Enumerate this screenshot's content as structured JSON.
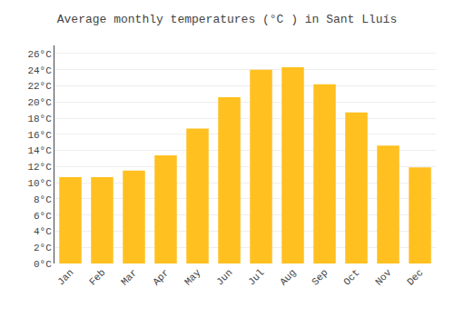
{
  "chart_data": {
    "type": "bar",
    "title": "Average monthly temperatures (°C ) in Sant Lluís",
    "categories": [
      "Jan",
      "Feb",
      "Mar",
      "Apr",
      "May",
      "Jun",
      "Jul",
      "Aug",
      "Sep",
      "Oct",
      "Nov",
      "Dec"
    ],
    "values": [
      10.7,
      10.7,
      11.5,
      13.4,
      16.7,
      20.6,
      24.0,
      24.3,
      22.2,
      18.7,
      14.6,
      11.9
    ],
    "color": "#FFC020",
    "ylim": [
      0,
      27
    ],
    "yticks": [
      {
        "value": 0,
        "label": "0°C"
      },
      {
        "value": 2,
        "label": "2°C"
      },
      {
        "value": 4,
        "label": "4°C"
      },
      {
        "value": 6,
        "label": "6°C"
      },
      {
        "value": 8,
        "label": "8°C"
      },
      {
        "value": 10,
        "label": "10°C"
      },
      {
        "value": 12,
        "label": "12°C"
      },
      {
        "value": 14,
        "label": "14°C"
      },
      {
        "value": 16,
        "label": "16°C"
      },
      {
        "value": 18,
        "label": "18°C"
      },
      {
        "value": 20,
        "label": "20°C"
      },
      {
        "value": 22,
        "label": "22°C"
      },
      {
        "value": 24,
        "label": "24°C"
      },
      {
        "value": 26,
        "label": "26°C"
      }
    ],
    "grid": true
  }
}
